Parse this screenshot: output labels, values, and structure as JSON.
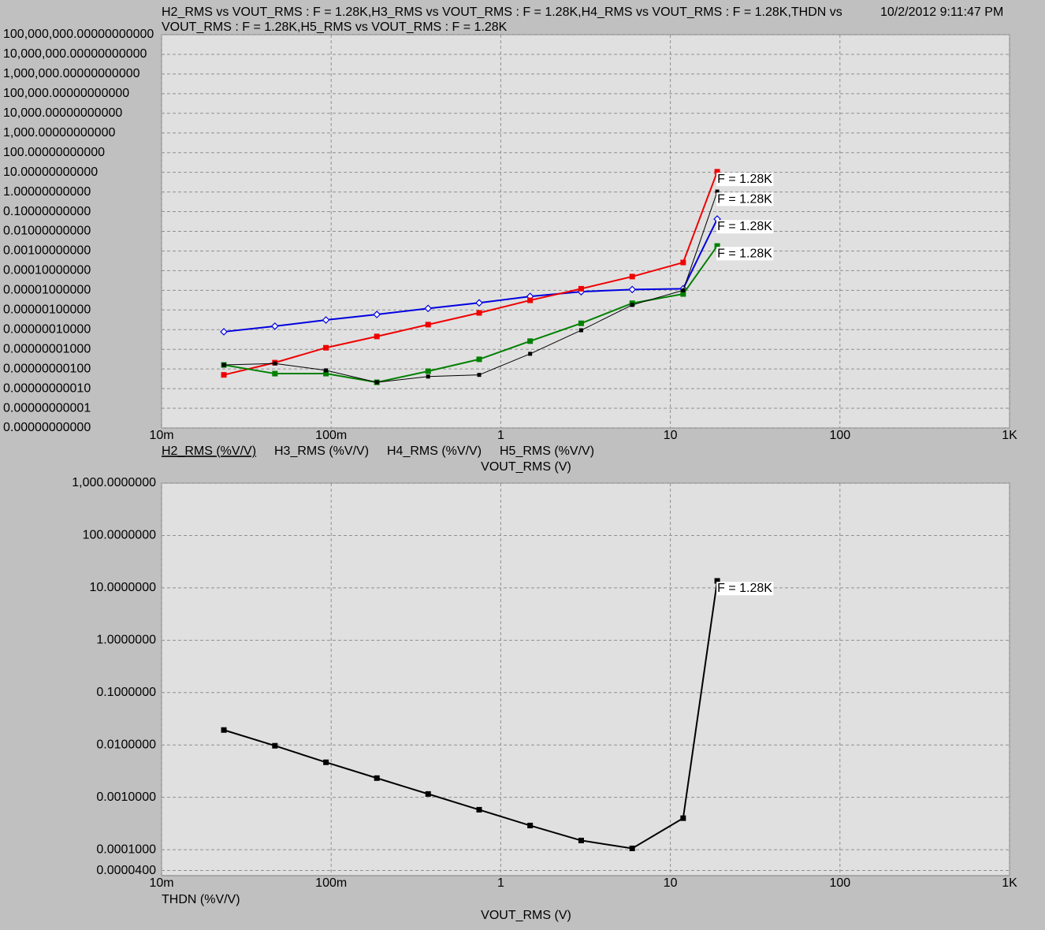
{
  "header": {
    "title": "H2_RMS vs VOUT_RMS : F = 1.28K,H3_RMS vs VOUT_RMS : F = 1.28K,H4_RMS vs VOUT_RMS : F = 1.28K,THDN vs VOUT_RMS : F = 1.28K,H5_RMS vs VOUT_RMS : F = 1.28K",
    "timestamp": "10/2/2012 9:11:47 PM"
  },
  "chart_data": [
    {
      "type": "line",
      "xlabel": "VOUT_RMS (V)",
      "xlog": true,
      "ylog": true,
      "grid": true,
      "xlim": [
        0.01,
        1000
      ],
      "xticks": [
        {
          "value": 0.01,
          "label": "10m"
        },
        {
          "value": 0.1,
          "label": "100m"
        },
        1,
        10,
        100,
        {
          "value": 1000,
          "label": "1K"
        }
      ],
      "ylim": [
        1e-12,
        100000000
      ],
      "yticks": [
        {
          "value": 100000000,
          "label": "100,000,000.00000000000"
        },
        {
          "value": 10000000,
          "label": "10,000,000.00000000000"
        },
        {
          "value": 1000000,
          "label": "1,000,000.00000000000"
        },
        {
          "value": 100000,
          "label": "100,000.00000000000"
        },
        {
          "value": 10000,
          "label": "10,000.00000000000"
        },
        {
          "value": 1000,
          "label": "1,000.00000000000"
        },
        {
          "value": 100,
          "label": "100.00000000000"
        },
        {
          "value": 10,
          "label": "10.00000000000"
        },
        {
          "value": 1,
          "label": "1.00000000000"
        },
        {
          "value": 0.1,
          "label": "0.10000000000"
        },
        {
          "value": 0.01,
          "label": "0.01000000000"
        },
        {
          "value": 0.001,
          "label": "0.00100000000"
        },
        {
          "value": 0.0001,
          "label": "0.00010000000"
        },
        {
          "value": 1e-05,
          "label": "0.00001000000"
        },
        {
          "value": 1e-06,
          "label": "0.00000100000"
        },
        {
          "value": 1e-07,
          "label": "0.00000010000"
        },
        {
          "value": 1e-08,
          "label": "0.00000001000"
        },
        {
          "value": 1e-09,
          "label": "0.00000000100"
        },
        {
          "value": 1e-10,
          "label": "0.00000000010"
        },
        {
          "value": 1e-11,
          "label": "0.00000000001"
        },
        {
          "value": 1e-12,
          "label": "0.00000000000"
        }
      ],
      "x": [
        0.0233,
        0.0466,
        0.0932,
        0.186,
        0.373,
        0.746,
        1.49,
        2.98,
        5.96,
        11.9,
        18.9
      ],
      "series": [
        {
          "name": "H2_RMS (%V/V)",
          "color": "#0000e0",
          "marker": "diamond",
          "end_label": "F = 1.28K",
          "values": [
            7.8e-08,
            1.5e-07,
            3.1e-07,
            5.9e-07,
            1.2e-06,
            2.3e-06,
            4.9e-06,
            8.5e-06,
            1.1e-05,
            1.2e-05,
            0.042
          ]
        },
        {
          "name": "H3_RMS (%V/V)",
          "color": "#f00000",
          "marker": "square",
          "end_label": "F = 1.28K",
          "values": [
            5e-10,
            2.1e-09,
            1.2e-08,
            4.5e-08,
            1.8e-07,
            7.1e-07,
            3.1e-06,
            1.2e-05,
            5e-05,
            0.00026,
            10.7
          ]
        },
        {
          "name": "H4_RMS (%V/V)",
          "color": "#008000",
          "marker": "square",
          "end_label": "F = 1.28K",
          "values": [
            1.6e-09,
            5.8e-10,
            5.8e-10,
            2.1e-10,
            7.7e-10,
            3.1e-09,
            2.6e-08,
            2.1e-07,
            2.2e-06,
            6.5e-06,
            0.0018
          ]
        },
        {
          "name": "H5_RMS (%V/V)",
          "color": "#000000",
          "marker": "small",
          "end_label": "F = 1.28K",
          "values": [
            1.6e-09,
            1.9e-09,
            8.5e-10,
            2.1e-10,
            4.1e-10,
            5e-10,
            5.9e-09,
            9.3e-08,
            1.8e-06,
            1e-05,
            1.05
          ]
        }
      ]
    },
    {
      "type": "line",
      "xlabel": "VOUT_RMS (V)",
      "xlog": true,
      "ylog": true,
      "grid": true,
      "xlim": [
        0.01,
        1000
      ],
      "xticks": [
        {
          "value": 0.01,
          "label": "10m"
        },
        {
          "value": 0.1,
          "label": "100m"
        },
        1,
        10,
        100,
        {
          "value": 1000,
          "label": "1K"
        }
      ],
      "ylim": [
        3.2e-05,
        1000
      ],
      "yticks": [
        {
          "value": 1000,
          "label": "1,000.0000000"
        },
        {
          "value": 100,
          "label": "100.0000000"
        },
        {
          "value": 10,
          "label": "10.0000000"
        },
        {
          "value": 1,
          "label": "1.0000000"
        },
        {
          "value": 0.1,
          "label": "0.1000000"
        },
        {
          "value": 0.01,
          "label": "0.0100000"
        },
        {
          "value": 0.001,
          "label": "0.0010000"
        },
        {
          "value": 0.0001,
          "label": "0.0001000"
        },
        {
          "value": 4e-05,
          "label": "0.0000400"
        }
      ],
      "x": [
        0.0233,
        0.0466,
        0.0932,
        0.186,
        0.373,
        0.746,
        1.49,
        2.98,
        5.96,
        11.9,
        18.9
      ],
      "series": [
        {
          "name": "THDN (%V/V)",
          "color": "#000000",
          "marker": "square",
          "end_label": "F = 1.28K",
          "values": [
            0.0193,
            0.00966,
            0.00467,
            0.00233,
            0.00116,
            0.00058,
            0.00029,
            0.00015,
            0.000106,
            0.0004,
            13.6
          ]
        }
      ]
    }
  ]
}
